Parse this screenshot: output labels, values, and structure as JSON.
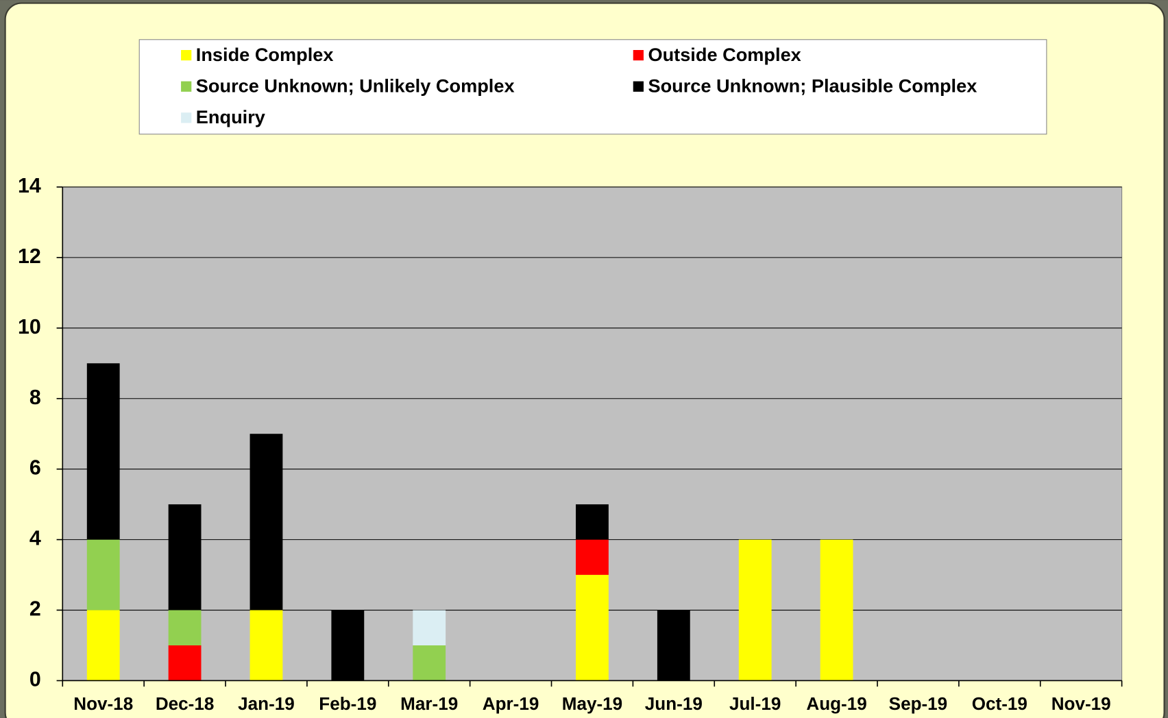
{
  "chart_data": {
    "type": "stacked_bar",
    "categories": [
      "Nov-18",
      "Dec-18",
      "Jan-19",
      "Feb-19",
      "Mar-19",
      "Apr-19",
      "May-19",
      "Jun-19",
      "Jul-19",
      "Aug-19",
      "Sep-19",
      "Oct-19",
      "Nov-19"
    ],
    "series": [
      {
        "name": "Inside Complex",
        "color": "#ffff00",
        "values": [
          2,
          0,
          2,
          0,
          0,
          0,
          3,
          0,
          4,
          4,
          0,
          0,
          0
        ]
      },
      {
        "name": "Outside Complex",
        "color": "#ff0000",
        "values": [
          0,
          1,
          0,
          0,
          0,
          0,
          1,
          0,
          0,
          0,
          0,
          0,
          0
        ]
      },
      {
        "name": "Source Unknown; Unlikely Complex",
        "color": "#92d050",
        "values": [
          2,
          1,
          0,
          0,
          1,
          0,
          0,
          0,
          0,
          0,
          0,
          0,
          0
        ]
      },
      {
        "name": "Source Unknown; Plausible Complex",
        "color": "#000000",
        "values": [
          5,
          3,
          5,
          2,
          0,
          0,
          1,
          2,
          0,
          0,
          0,
          0,
          0
        ]
      },
      {
        "name": "Enquiry",
        "color": "#dbeef3",
        "values": [
          0,
          0,
          0,
          0,
          1,
          0,
          0,
          0,
          0,
          0,
          0,
          0,
          0
        ]
      }
    ],
    "ylim": [
      0,
      14
    ],
    "yticks": [
      0,
      2,
      4,
      6,
      8,
      10,
      12,
      14
    ],
    "grid": true
  }
}
